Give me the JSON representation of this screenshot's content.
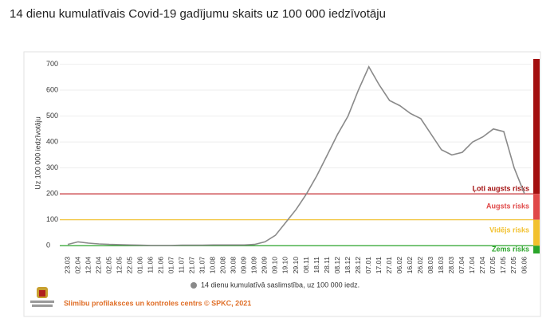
{
  "chart_data": {
    "type": "line",
    "title": "14 dienu kumulatīvais Covid-19 gadījumu skaits uz 100 000 iedzīvotāju",
    "y_label": "Uz 100 000 iedzīvotāju",
    "source": "Slimību profilaksces un kontroles centrs © SPKC, 2021",
    "categories": [
      "23.03",
      "02.04",
      "12.04",
      "22.04",
      "02.05",
      "12.05",
      "22.05",
      "01.06",
      "11.06",
      "21.06",
      "01.07",
      "11.07",
      "21.07",
      "31.07",
      "10.08",
      "20.08",
      "30.08",
      "09.09",
      "19.09",
      "29.09",
      "09.10",
      "19.10",
      "29.10",
      "08.11",
      "18.11",
      "28.11",
      "08.12",
      "18.12",
      "28.12",
      "07.01",
      "17.01",
      "27.01",
      "06.02",
      "16.02",
      "26.02",
      "08.03",
      "18.03",
      "28.03",
      "07.04",
      "17.04",
      "27.04",
      "07.05",
      "17.05",
      "27.05",
      "06.06"
    ],
    "series": [
      {
        "name": "14 dienu kumulatīvā saslimstība, uz 100 000 iedz.",
        "color": "#8a8a8a",
        "values": [
          5,
          15,
          10,
          7,
          5,
          4,
          3,
          2,
          1,
          1,
          1,
          2,
          2,
          2,
          3,
          3,
          3,
          3,
          5,
          15,
          40,
          90,
          140,
          200,
          270,
          350,
          430,
          500,
          600,
          690,
          620,
          560,
          540,
          510,
          490,
          430,
          370,
          350,
          360,
          400,
          420,
          450,
          440,
          300,
          200
        ]
      }
    ],
    "ylim": [
      -30,
      720
    ],
    "yticks": [
      0,
      100,
      200,
      300,
      400,
      500,
      600,
      700
    ],
    "grid": true,
    "risk_bands": [
      {
        "name": "Ļoti augsts risks",
        "color": "#a30f0f",
        "from": 200,
        "to": 720
      },
      {
        "name": "Augsts risks",
        "color": "#e04848",
        "from": 100,
        "to": 200
      },
      {
        "name": "Vidējs risks",
        "color": "#f2c12e",
        "from": 0,
        "to": 100
      },
      {
        "name": "Zems risks",
        "color": "#2aa52a",
        "from": -30,
        "to": 0
      }
    ],
    "threshold_lines": [
      {
        "value": 200,
        "color": "#c0141a"
      },
      {
        "value": 100,
        "color": "#f2c12e"
      },
      {
        "value": 0,
        "color": "#2aa52a"
      }
    ]
  }
}
